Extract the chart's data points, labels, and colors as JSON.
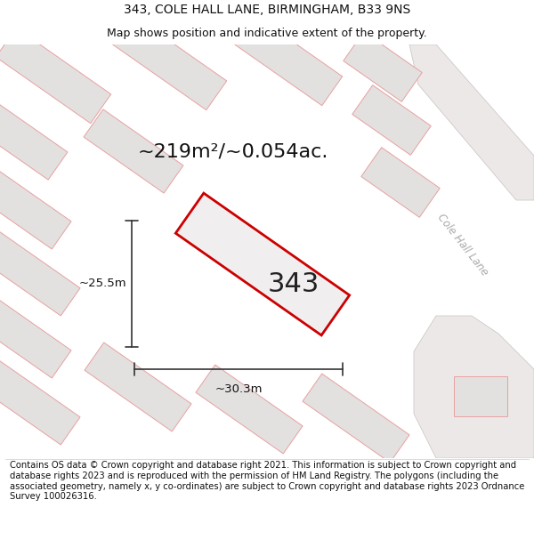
{
  "title_line1": "343, COLE HALL LANE, BIRMINGHAM, B33 9NS",
  "title_line2": "Map shows position and indicative extent of the property.",
  "footer_text": "Contains OS data © Crown copyright and database right 2021. This information is subject to Crown copyright and database rights 2023 and is reproduced with the permission of HM Land Registry. The polygons (including the associated geometry, namely x, y co-ordinates) are subject to Crown copyright and database rights 2023 Ordnance Survey 100026316.",
  "area_label": "~219m²/~0.054ac.",
  "width_label": "~30.3m",
  "height_label": "~25.5m",
  "property_number": "343",
  "road_label": "Cole Hall Lane",
  "bg_color": "#ffffff",
  "map_bg": "#faf8f8",
  "property_fill": "#f0eeee",
  "property_edge": "#cc0000",
  "neighbor_fill": "#e3e0e0",
  "neighbor_edge": "#e8a0a0",
  "road_fill": "#f0eeee",
  "road_edge": "#c8c0c0",
  "dimension_color": "#333333",
  "title_fontsize": 10,
  "subtitle_fontsize": 9,
  "footer_fontsize": 7.2,
  "area_fontsize": 16,
  "number_fontsize": 22,
  "dim_fontsize": 9.5
}
